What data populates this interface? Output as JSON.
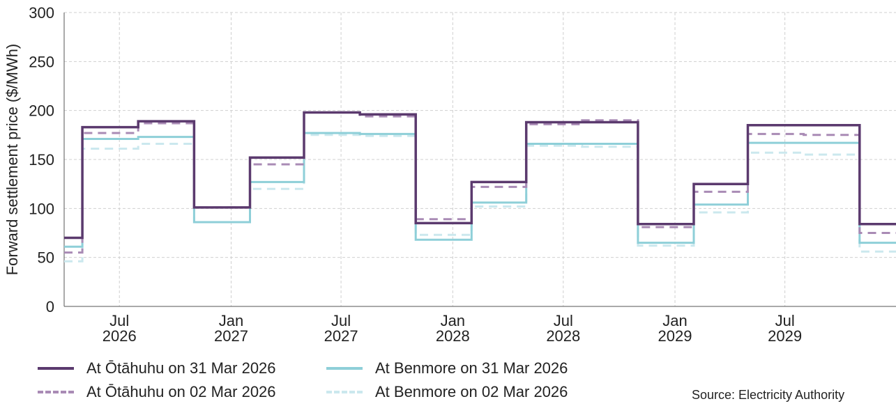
{
  "chart_data": {
    "type": "line",
    "step": true,
    "ylabel": "Forward settlement price ($/MWh)",
    "xlabel": "",
    "ylim": [
      0,
      300
    ],
    "yticks": [
      0,
      50,
      100,
      150,
      200,
      250,
      300
    ],
    "xlim": [
      "2026-04-01",
      "2029-12-31"
    ],
    "xticks": [
      {
        "date": "2026-07-01",
        "line1": "Jul",
        "line2": "2026"
      },
      {
        "date": "2027-01-01",
        "line1": "Jan",
        "line2": "2027"
      },
      {
        "date": "2027-07-01",
        "line1": "Jul",
        "line2": "2027"
      },
      {
        "date": "2028-01-01",
        "line1": "Jan",
        "line2": "2028"
      },
      {
        "date": "2028-07-01",
        "line1": "Jul",
        "line2": "2028"
      },
      {
        "date": "2029-01-01",
        "line1": "Jan",
        "line2": "2029"
      },
      {
        "date": "2029-07-01",
        "line1": "Jul",
        "line2": "2029"
      }
    ],
    "grid": true,
    "legend_position": "bottom",
    "quarters": [
      "2026-04-01",
      "2026-05-01",
      "2026-08-01",
      "2026-11-01",
      "2027-02-01",
      "2027-05-01",
      "2027-08-01",
      "2027-11-01",
      "2028-02-01",
      "2028-05-01",
      "2028-08-01",
      "2028-11-01",
      "2029-02-01",
      "2029-05-01",
      "2029-08-01",
      "2029-11-01",
      "2029-12-31"
    ],
    "series": [
      {
        "name": "At Ōtāhuhu on 31 Mar 2026",
        "color": "#5b3a6e",
        "style": "solid",
        "values": [
          70,
          183,
          189,
          101,
          152,
          198,
          196,
          85,
          127,
          188,
          188,
          84,
          125,
          185,
          185,
          84
        ]
      },
      {
        "name": "At Ōtāhuhu on 02 Mar 2026",
        "color": "#a98bb5",
        "style": "dashed",
        "values": [
          55,
          177,
          187,
          101,
          145,
          198,
          194,
          89,
          122,
          186,
          190,
          81,
          117,
          176,
          175,
          75
        ]
      },
      {
        "name": "At Benmore on 31 Mar 2026",
        "color": "#8ecfd8",
        "style": "solid",
        "values": [
          61,
          171,
          173,
          86,
          127,
          177,
          176,
          68,
          106,
          166,
          166,
          65,
          104,
          167,
          167,
          65
        ]
      },
      {
        "name": "At Benmore on 02 Mar 2026",
        "color": "#cbe8ee",
        "style": "dashed",
        "values": [
          46,
          161,
          166,
          86,
          120,
          175,
          174,
          73,
          102,
          164,
          163,
          62,
          96,
          157,
          155,
          56
        ]
      }
    ],
    "source": "Source: Electricity Authority"
  }
}
